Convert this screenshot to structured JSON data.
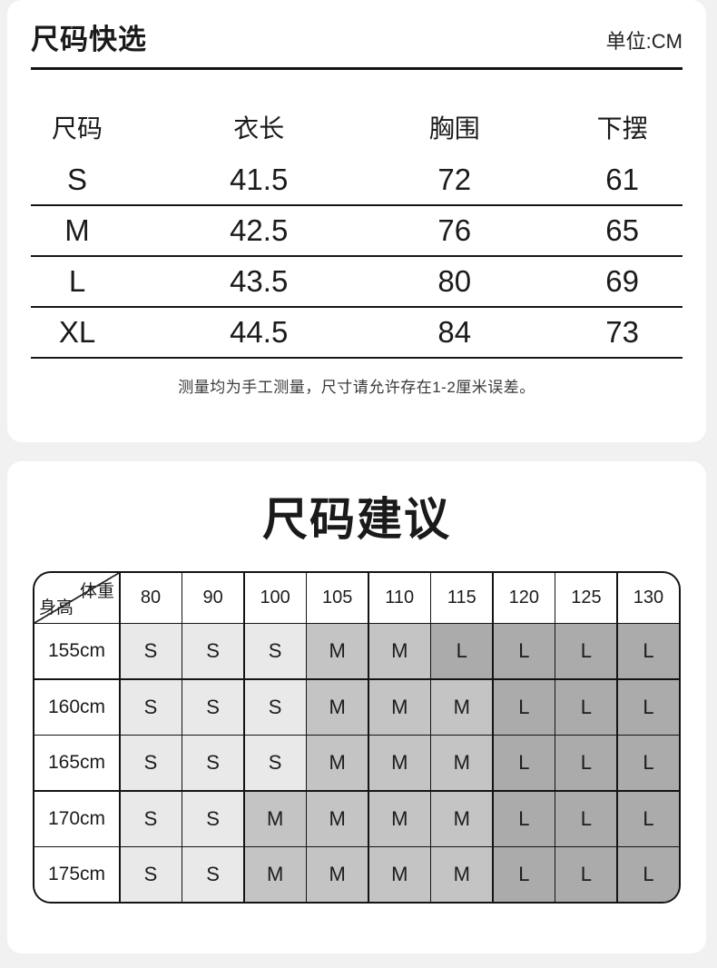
{
  "quick_select": {
    "title": "尺码快选",
    "unit": "单位:CM",
    "columns": [
      "尺码",
      "衣长",
      "胸围",
      "下摆"
    ],
    "rows": [
      [
        "S",
        "41.5",
        "72",
        "61"
      ],
      [
        "M",
        "42.5",
        "76",
        "65"
      ],
      [
        "L",
        "43.5",
        "80",
        "69"
      ],
      [
        "XL",
        "44.5",
        "84",
        "73"
      ]
    ],
    "note": "测量均为手工测量，尺寸请允许存在1-2厘米误差。"
  },
  "suggestion": {
    "title": "尺码建议",
    "corner": {
      "top_right": "体重",
      "bottom_left": "身高"
    },
    "weights": [
      "80",
      "90",
      "100",
      "105",
      "110",
      "115",
      "120",
      "125",
      "130"
    ],
    "rows": [
      {
        "height": "155cm",
        "values": [
          "S",
          "S",
          "S",
          "M",
          "M",
          "L",
          "L",
          "L",
          "L"
        ]
      },
      {
        "height": "160cm",
        "values": [
          "S",
          "S",
          "S",
          "M",
          "M",
          "M",
          "L",
          "L",
          "L"
        ]
      },
      {
        "height": "165cm",
        "values": [
          "S",
          "S",
          "S",
          "M",
          "M",
          "M",
          "L",
          "L",
          "L"
        ]
      },
      {
        "height": "170cm",
        "values": [
          "S",
          "S",
          "M",
          "M",
          "M",
          "M",
          "L",
          "L",
          "L"
        ]
      },
      {
        "height": "175cm",
        "values": [
          "S",
          "S",
          "M",
          "M",
          "M",
          "M",
          "L",
          "L",
          "L"
        ]
      }
    ],
    "value_colors": {
      "S": "#e9e9e9",
      "M": "#c4c4c4",
      "L": "#ababab"
    }
  }
}
